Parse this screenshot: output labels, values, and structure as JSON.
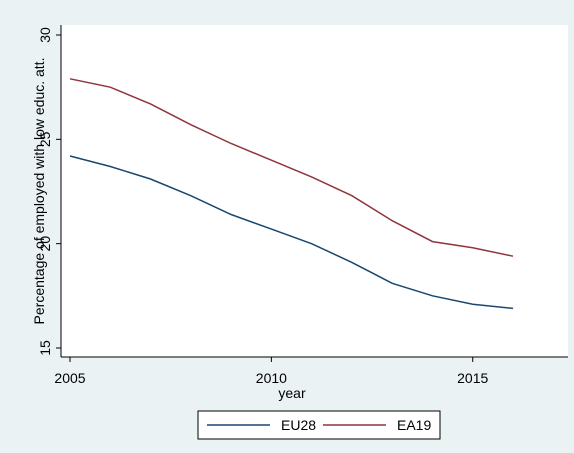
{
  "chart_data": {
    "type": "line",
    "title": "",
    "xlabel": "year",
    "ylabel": "Percentage of employed with low educ. att.",
    "xlim": [
      2005,
      2016
    ],
    "ylim": [
      15,
      30
    ],
    "x_ticks": [
      "2005",
      "2010",
      "2015"
    ],
    "y_ticks": [
      "15",
      "20",
      "25",
      "30"
    ],
    "grid": false,
    "legend_position": "bottom",
    "x": [
      2005,
      2006,
      2007,
      2008,
      2009,
      2010,
      2011,
      2012,
      2013,
      2014,
      2015,
      2016
    ],
    "series": [
      {
        "name": "EU28",
        "color": "#1a476f",
        "values": [
          24.2,
          23.7,
          23.1,
          22.3,
          21.4,
          20.7,
          20.0,
          19.1,
          18.1,
          17.5,
          17.1,
          16.9
        ]
      },
      {
        "name": "EA19",
        "color": "#90353b",
        "values": [
          27.9,
          27.5,
          26.7,
          25.7,
          24.8,
          24.0,
          23.2,
          22.3,
          21.1,
          20.1,
          19.8,
          19.4
        ]
      }
    ]
  }
}
